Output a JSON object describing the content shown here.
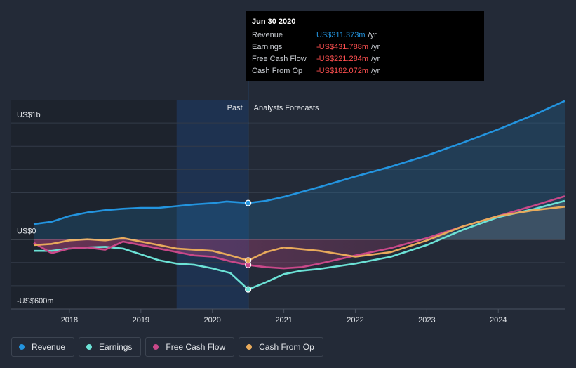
{
  "tooltip": {
    "date": "Jun 30 2020",
    "rows": [
      {
        "label": "Revenue",
        "value": "US$311.373m",
        "unit": "/yr",
        "color": "#2394df"
      },
      {
        "label": "Earnings",
        "value": "-US$431.788m",
        "unit": "/yr",
        "color": "#ff5050"
      },
      {
        "label": "Free Cash Flow",
        "value": "-US$221.284m",
        "unit": "/yr",
        "color": "#ff5050"
      },
      {
        "label": "Cash From Op",
        "value": "-US$182.072m",
        "unit": "/yr",
        "color": "#ff5050"
      }
    ]
  },
  "legend": [
    {
      "label": "Revenue",
      "color": "#2394df"
    },
    {
      "label": "Earnings",
      "color": "#6ce2d6"
    },
    {
      "label": "Free Cash Flow",
      "color": "#c94889"
    },
    {
      "label": "Cash From Op",
      "color": "#e8aa5b"
    }
  ],
  "chart_data": {
    "type": "line",
    "title": "",
    "xlabel": "",
    "ylabel": "",
    "y_tick_labels": [
      {
        "label": "US$1b",
        "value": 1000
      },
      {
        "label": "US$0",
        "value": 0
      },
      {
        "label": "-US$600m",
        "value": -600
      }
    ],
    "x_tick_labels": [
      "2018",
      "2019",
      "2020",
      "2021",
      "2022",
      "2023",
      "2024"
    ],
    "xlim": [
      2017.5,
      2024.93
    ],
    "ylim": [
      -600,
      1200
    ],
    "past_label": "Past",
    "forecast_label": "Analysts Forecasts",
    "past_end": 2020.5,
    "highlight_start": 2019.5,
    "shaded_start": 2017.5,
    "shaded_end": 2019.5,
    "series": [
      {
        "name": "Revenue",
        "color": "#2394df",
        "points": [
          [
            2017.5,
            130
          ],
          [
            2017.75,
            150
          ],
          [
            2018.0,
            200
          ],
          [
            2018.25,
            230
          ],
          [
            2018.5,
            250
          ],
          [
            2018.75,
            262
          ],
          [
            2019.0,
            270
          ],
          [
            2019.25,
            270
          ],
          [
            2019.5,
            285
          ],
          [
            2019.75,
            300
          ],
          [
            2020.0,
            310
          ],
          [
            2020.2,
            325
          ],
          [
            2020.5,
            311.4
          ],
          [
            2020.75,
            330
          ],
          [
            2021.0,
            365
          ],
          [
            2021.5,
            450
          ],
          [
            2022.0,
            540
          ],
          [
            2022.5,
            625
          ],
          [
            2023.0,
            720
          ],
          [
            2023.5,
            830
          ],
          [
            2024.0,
            945
          ],
          [
            2024.5,
            1070
          ],
          [
            2024.93,
            1190
          ]
        ]
      },
      {
        "name": "Earnings",
        "color": "#6ce2d6",
        "points": [
          [
            2017.5,
            -100
          ],
          [
            2017.75,
            -100
          ],
          [
            2018.0,
            -80
          ],
          [
            2018.25,
            -70
          ],
          [
            2018.5,
            -65
          ],
          [
            2018.75,
            -80
          ],
          [
            2019.0,
            -130
          ],
          [
            2019.25,
            -180
          ],
          [
            2019.5,
            -210
          ],
          [
            2019.75,
            -220
          ],
          [
            2020.0,
            -250
          ],
          [
            2020.25,
            -290
          ],
          [
            2020.5,
            -431.8
          ],
          [
            2020.75,
            -370
          ],
          [
            2021.0,
            -300
          ],
          [
            2021.25,
            -270
          ],
          [
            2021.5,
            -255
          ],
          [
            2022.0,
            -210
          ],
          [
            2022.5,
            -150
          ],
          [
            2023.0,
            -50
          ],
          [
            2023.5,
            80
          ],
          [
            2024.0,
            190
          ],
          [
            2024.5,
            260
          ],
          [
            2024.93,
            330
          ]
        ]
      },
      {
        "name": "Free Cash Flow",
        "color": "#c94889",
        "points": [
          [
            2017.5,
            -30
          ],
          [
            2017.75,
            -120
          ],
          [
            2018.0,
            -80
          ],
          [
            2018.25,
            -70
          ],
          [
            2018.5,
            -90
          ],
          [
            2018.75,
            -20
          ],
          [
            2019.0,
            -50
          ],
          [
            2019.25,
            -80
          ],
          [
            2019.5,
            -110
          ],
          [
            2019.75,
            -140
          ],
          [
            2020.0,
            -150
          ],
          [
            2020.25,
            -190
          ],
          [
            2020.5,
            -221.3
          ],
          [
            2020.75,
            -240
          ],
          [
            2021.0,
            -250
          ],
          [
            2021.25,
            -240
          ],
          [
            2021.5,
            -210
          ],
          [
            2022.0,
            -140
          ],
          [
            2022.5,
            -75
          ],
          [
            2023.0,
            10
          ],
          [
            2023.5,
            110
          ],
          [
            2024.0,
            200
          ],
          [
            2024.5,
            290
          ],
          [
            2024.93,
            370
          ]
        ]
      },
      {
        "name": "Cash From Op",
        "color": "#e8aa5b",
        "points": [
          [
            2017.5,
            -50
          ],
          [
            2017.75,
            -40
          ],
          [
            2018.0,
            -10
          ],
          [
            2018.25,
            0
          ],
          [
            2018.5,
            -10
          ],
          [
            2018.75,
            10
          ],
          [
            2019.0,
            -20
          ],
          [
            2019.25,
            -50
          ],
          [
            2019.5,
            -80
          ],
          [
            2019.75,
            -90
          ],
          [
            2020.0,
            -100
          ],
          [
            2020.2,
            -130
          ],
          [
            2020.5,
            -182.1
          ],
          [
            2020.75,
            -110
          ],
          [
            2021.0,
            -70
          ],
          [
            2021.5,
            -100
          ],
          [
            2022.0,
            -150
          ],
          [
            2022.5,
            -110
          ],
          [
            2023.0,
            -10
          ],
          [
            2023.5,
            110
          ],
          [
            2024.0,
            200
          ],
          [
            2024.5,
            250
          ],
          [
            2024.93,
            280
          ]
        ]
      }
    ]
  }
}
